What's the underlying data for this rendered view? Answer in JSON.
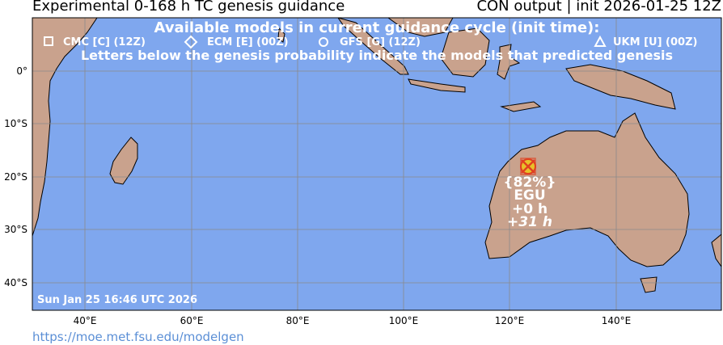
{
  "header": {
    "title_left": "Experimental 0-168 h TC genesis guidance",
    "title_right": "CON output | init 2026-01-25 12Z"
  },
  "legend": {
    "heading": "Available models in current guidance cycle (init time):",
    "models": [
      {
        "symbol": "square",
        "label": "CMC [C] (12Z)"
      },
      {
        "symbol": "diamond",
        "label": "ECM [E] (00Z)"
      },
      {
        "symbol": "circle",
        "label": "GFS [G] (12Z)"
      },
      {
        "symbol": "triangle",
        "label": "UKM [U] (00Z)"
      }
    ],
    "note": "Letters below the genesis probability indicate the models that predicted genesis"
  },
  "map": {
    "lat_labels": [
      "0°",
      "10°S",
      "20°S",
      "30°S",
      "40°S"
    ],
    "lon_labels": [
      "40°E",
      "60°E",
      "80°E",
      "100°E",
      "120°E",
      "140°E"
    ],
    "ocean_color": "#7fa7ee",
    "land_color": "#c9a28d",
    "grid_color": "#8a8a8a"
  },
  "genesis_area": {
    "probability": "{82%}",
    "models": "EGU",
    "first_time": "+0 h",
    "last_time": "+31 h",
    "marker_color": "#e8c12a",
    "cross_color": "#e04020"
  },
  "timestamp": "Sun Jan 25 16:46 UTC 2026",
  "footer": {
    "link": "https://moe.met.fsu.edu/modelgen"
  }
}
